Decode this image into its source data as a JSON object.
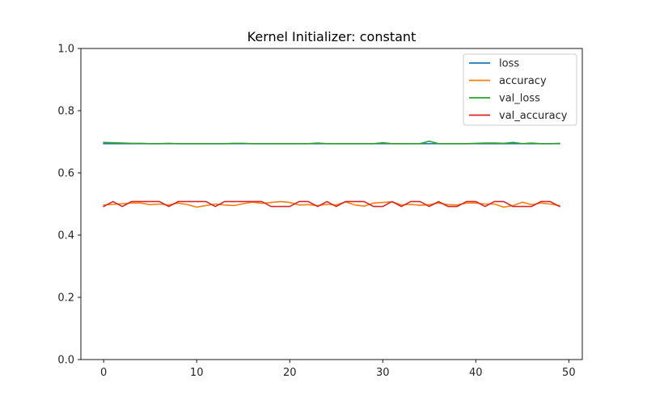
{
  "chart_data": {
    "type": "line",
    "title": "Kernel Initializer: constant",
    "xlabel": "",
    "ylabel": "",
    "xlim": [
      -2.45,
      51.45
    ],
    "ylim": [
      0,
      1
    ],
    "x_ticks": [
      0,
      10,
      20,
      30,
      40,
      50
    ],
    "y_ticks": [
      0.0,
      0.2,
      0.4,
      0.6,
      0.8,
      1.0
    ],
    "x_tick_labels": [
      "0",
      "10",
      "20",
      "30",
      "40",
      "50"
    ],
    "y_tick_labels": [
      "0.0",
      "0.2",
      "0.4",
      "0.6",
      "0.8",
      "1.0"
    ],
    "grid": false,
    "legend_position": "top-right",
    "x": [
      0,
      1,
      2,
      3,
      4,
      5,
      6,
      7,
      8,
      9,
      10,
      11,
      12,
      13,
      14,
      15,
      16,
      17,
      18,
      19,
      20,
      21,
      22,
      23,
      24,
      25,
      26,
      27,
      28,
      29,
      30,
      31,
      32,
      33,
      34,
      35,
      36,
      37,
      38,
      39,
      40,
      41,
      42,
      43,
      44,
      45,
      46,
      47,
      48,
      49
    ],
    "series": [
      {
        "name": "loss",
        "color": "#1f77b4",
        "values": [
          0.694,
          0.694,
          0.694,
          0.694,
          0.694,
          0.694,
          0.694,
          0.694,
          0.694,
          0.694,
          0.694,
          0.694,
          0.694,
          0.694,
          0.694,
          0.694,
          0.694,
          0.694,
          0.694,
          0.694,
          0.694,
          0.694,
          0.694,
          0.694,
          0.694,
          0.694,
          0.694,
          0.694,
          0.694,
          0.694,
          0.694,
          0.694,
          0.694,
          0.694,
          0.694,
          0.694,
          0.694,
          0.694,
          0.694,
          0.694,
          0.694,
          0.694,
          0.694,
          0.694,
          0.694,
          0.694,
          0.694,
          0.694,
          0.694,
          0.694
        ]
      },
      {
        "name": "accuracy",
        "color": "#ff7f0e",
        "values": [
          0.497,
          0.499,
          0.501,
          0.503,
          0.503,
          0.498,
          0.5,
          0.497,
          0.503,
          0.498,
          0.49,
          0.495,
          0.5,
          0.497,
          0.495,
          0.501,
          0.506,
          0.502,
          0.505,
          0.508,
          0.505,
          0.497,
          0.498,
          0.495,
          0.499,
          0.497,
          0.507,
          0.497,
          0.493,
          0.503,
          0.505,
          0.507,
          0.497,
          0.499,
          0.496,
          0.498,
          0.503,
          0.498,
          0.497,
          0.503,
          0.503,
          0.5,
          0.5,
          0.49,
          0.495,
          0.506,
          0.498,
          0.503,
          0.5,
          0.495
        ]
      },
      {
        "name": "val_loss",
        "color": "#2ca02c",
        "values": [
          0.698,
          0.697,
          0.696,
          0.695,
          0.695,
          0.694,
          0.694,
          0.695,
          0.694,
          0.694,
          0.694,
          0.694,
          0.694,
          0.694,
          0.695,
          0.695,
          0.694,
          0.694,
          0.694,
          0.694,
          0.694,
          0.694,
          0.694,
          0.696,
          0.694,
          0.694,
          0.694,
          0.694,
          0.694,
          0.694,
          0.697,
          0.694,
          0.694,
          0.694,
          0.694,
          0.702,
          0.694,
          0.694,
          0.694,
          0.694,
          0.695,
          0.696,
          0.696,
          0.695,
          0.698,
          0.694,
          0.696,
          0.694,
          0.694,
          0.695
        ]
      },
      {
        "name": "val_accuracy",
        "color": "#d62728",
        "values": [
          0.492,
          0.508,
          0.492,
          0.508,
          0.508,
          0.508,
          0.508,
          0.492,
          0.508,
          0.508,
          0.508,
          0.508,
          0.492,
          0.508,
          0.508,
          0.508,
          0.508,
          0.508,
          0.492,
          0.492,
          0.492,
          0.508,
          0.508,
          0.492,
          0.508,
          0.492,
          0.508,
          0.508,
          0.508,
          0.492,
          0.492,
          0.508,
          0.492,
          0.508,
          0.508,
          0.492,
          0.508,
          0.492,
          0.492,
          0.508,
          0.508,
          0.492,
          0.508,
          0.508,
          0.492,
          0.492,
          0.492,
          0.508,
          0.508,
          0.492
        ]
      }
    ]
  }
}
